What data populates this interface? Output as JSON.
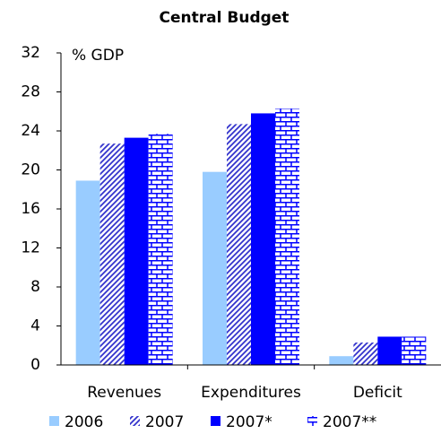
{
  "chart_data": {
    "type": "bar",
    "title": "Central Budget",
    "annotation": "% GDP",
    "categories": [
      "Revenues",
      "Expenditures",
      "Deficit"
    ],
    "series": [
      {
        "name": "2006",
        "color": "#99ccff",
        "pattern": "solid",
        "values": [
          18.9,
          19.8,
          0.9
        ]
      },
      {
        "name": "2007",
        "color": "#3333cc",
        "pattern": "diagonal",
        "values": [
          22.7,
          24.7,
          2.3
        ]
      },
      {
        "name": "2007*",
        "color": "#0000ff",
        "pattern": "solid",
        "values": [
          23.3,
          25.8,
          2.9
        ]
      },
      {
        "name": "2007**",
        "color": "#0000ff",
        "pattern": "brick",
        "values": [
          23.7,
          26.3,
          2.9
        ]
      }
    ],
    "ylim": [
      0,
      32
    ],
    "yticks": [
      0,
      4,
      8,
      12,
      16,
      20,
      24,
      28,
      32
    ],
    "grid": false,
    "legend": "bottom"
  }
}
